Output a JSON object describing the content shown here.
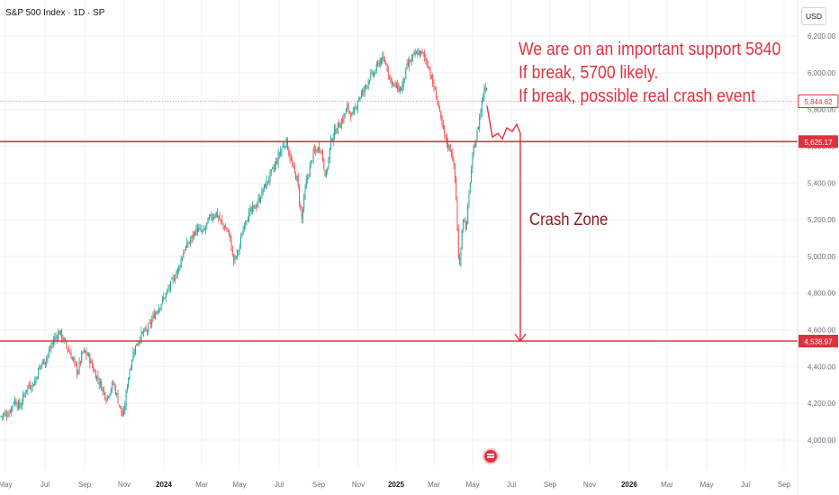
{
  "header": {
    "title": "S&P 500 Index · 1D · SP",
    "currency": "USD"
  },
  "annotations": {
    "line1": "We are on an important support 5840",
    "line2": "If break, 5700 likely.",
    "line3": "If break, possible real crash event",
    "crash_zone": "Crash Zone"
  },
  "colors": {
    "up": "#26a69a",
    "down": "#ef5350",
    "annotation": "#e0313f",
    "crash_text": "#8b1a1f",
    "axis_text": "#6b6f7b"
  },
  "chart_data": {
    "type": "candlestick",
    "title": "S&P 500 Index · 1D · SP",
    "ylabel": "USD",
    "ylim": [
      3900,
      6300
    ],
    "y_ticks": [
      "6,200.00",
      "6,000.00",
      "5,800.00",
      "5,600.00",
      "5,400.00",
      "5,200.00",
      "5,000.00",
      "4,800.00",
      "4,600.00",
      "4,400.00",
      "4,200.00",
      "4,000.00"
    ],
    "y_tick_values": [
      6200,
      6000,
      5800,
      5600,
      5400,
      5200,
      5000,
      4800,
      4600,
      4400,
      4200,
      4000
    ],
    "x_ticks": [
      "May",
      "Jul",
      "Sep",
      "Nov",
      "2024",
      "Mar",
      "May",
      "Jul",
      "Sep",
      "Nov",
      "2025",
      "Mar",
      "May",
      "Jul",
      "Sep",
      "Nov",
      "2026",
      "Mar",
      "May",
      "Jul",
      "Sep"
    ],
    "x_tick_bold": [
      "2024",
      "2025",
      "2026"
    ],
    "price_labels": [
      {
        "value": 5844.62,
        "label": "5,844.62",
        "style": "current"
      },
      {
        "value": 5625.17,
        "label": "5,625.17",
        "style": "solid"
      },
      {
        "value": 4538.97,
        "label": "4,538.97",
        "style": "solid"
      }
    ],
    "horizontal_lines": [
      5625.17,
      4538.97
    ],
    "price_path": [
      [
        0,
        4130
      ],
      [
        10,
        4150
      ],
      [
        16,
        4220
      ],
      [
        22,
        4180
      ],
      [
        30,
        4290
      ],
      [
        38,
        4310
      ],
      [
        44,
        4400
      ],
      [
        52,
        4450
      ],
      [
        60,
        4550
      ],
      [
        66,
        4590
      ],
      [
        72,
        4530
      ],
      [
        80,
        4450
      ],
      [
        86,
        4370
      ],
      [
        92,
        4480
      ],
      [
        98,
        4460
      ],
      [
        104,
        4380
      ],
      [
        112,
        4300
      ],
      [
        118,
        4230
      ],
      [
        126,
        4310
      ],
      [
        132,
        4200
      ],
      [
        137,
        4120
      ],
      [
        142,
        4330
      ],
      [
        148,
        4480
      ],
      [
        156,
        4570
      ],
      [
        164,
        4600
      ],
      [
        172,
        4690
      ],
      [
        178,
        4740
      ],
      [
        184,
        4790
      ],
      [
        192,
        4870
      ],
      [
        198,
        4930
      ],
      [
        204,
        5030
      ],
      [
        212,
        5090
      ],
      [
        218,
        5150
      ],
      [
        226,
        5130
      ],
      [
        232,
        5200
      ],
      [
        240,
        5240
      ],
      [
        246,
        5180
      ],
      [
        254,
        5130
      ],
      [
        260,
        4970
      ],
      [
        266,
        5050
      ],
      [
        272,
        5200
      ],
      [
        280,
        5250
      ],
      [
        286,
        5290
      ],
      [
        292,
        5360
      ],
      [
        298,
        5420
      ],
      [
        306,
        5500
      ],
      [
        312,
        5580
      ],
      [
        318,
        5630
      ],
      [
        324,
        5500
      ],
      [
        330,
        5420
      ],
      [
        335,
        5200
      ],
      [
        340,
        5400
      ],
      [
        348,
        5560
      ],
      [
        356,
        5600
      ],
      [
        362,
        5430
      ],
      [
        368,
        5640
      ],
      [
        374,
        5700
      ],
      [
        380,
        5740
      ],
      [
        386,
        5810
      ],
      [
        392,
        5760
      ],
      [
        398,
        5860
      ],
      [
        404,
        5900
      ],
      [
        410,
        5970
      ],
      [
        416,
        6000
      ],
      [
        422,
        6070
      ],
      [
        428,
        6060
      ],
      [
        434,
        5960
      ],
      [
        440,
        5920
      ],
      [
        446,
        5910
      ],
      [
        452,
        6030
      ],
      [
        458,
        6080
      ],
      [
        464,
        6110
      ],
      [
        470,
        6100
      ],
      [
        476,
        6040
      ],
      [
        480,
        5950
      ],
      [
        486,
        5850
      ],
      [
        490,
        5730
      ],
      [
        496,
        5620
      ],
      [
        502,
        5570
      ],
      [
        506,
        5400
      ],
      [
        510,
        4900
      ],
      [
        514,
        5220
      ],
      [
        518,
        5150
      ],
      [
        522,
        5400
      ],
      [
        526,
        5580
      ],
      [
        530,
        5670
      ],
      [
        534,
        5800
      ],
      [
        538,
        5920
      ],
      [
        541,
        5930
      ]
    ],
    "projection_path": [
      [
        541,
        5820
      ],
      [
        547,
        5650
      ],
      [
        553,
        5670
      ],
      [
        558,
        5640
      ],
      [
        563,
        5700
      ],
      [
        569,
        5680
      ],
      [
        574,
        5720
      ],
      [
        578,
        5670
      ]
    ],
    "crash_arrow": {
      "from": 5670,
      "to": 4538.97
    }
  }
}
